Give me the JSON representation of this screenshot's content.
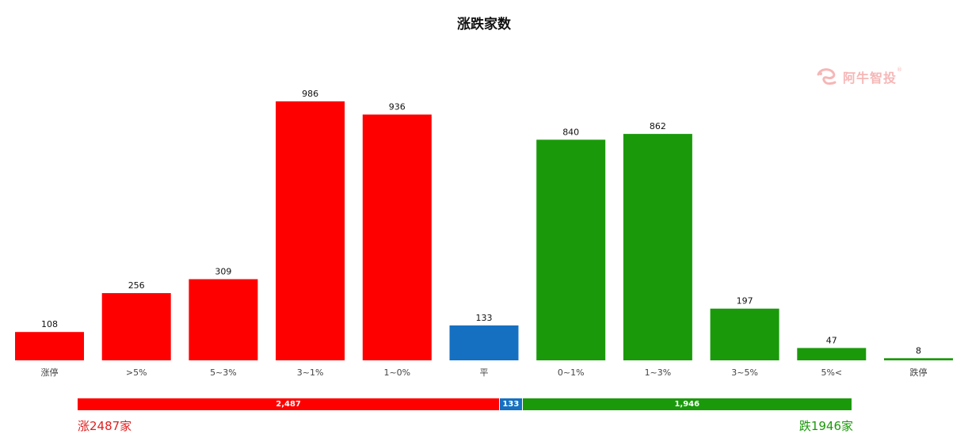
{
  "chart_data": {
    "type": "bar",
    "title": "涨跌家数",
    "categories": [
      "涨停",
      ">5%",
      "5~3%",
      "3~1%",
      "1~0%",
      "平",
      "0~1%",
      "1~3%",
      "3~5%",
      "5%<",
      "跌停"
    ],
    "values": [
      108,
      256,
      309,
      986,
      936,
      133,
      840,
      862,
      197,
      47,
      8
    ],
    "value_labels": [
      "108",
      "256",
      "309",
      "986",
      "936",
      "133",
      "840",
      "862",
      "197",
      "47",
      "8"
    ],
    "bar_colors": [
      "#ff0000",
      "#ff0000",
      "#ff0000",
      "#ff0000",
      "#ff0000",
      "#1570c2",
      "#1a9a0a",
      "#1a9a0a",
      "#1a9a0a",
      "#1a9a0a",
      "#1a9a0a"
    ],
    "ylim": [
      0,
      1000
    ],
    "grid": false,
    "xlabel": "",
    "ylabel": ""
  },
  "summary_bar": {
    "segments": [
      {
        "name": "up",
        "value": 2487,
        "label": "2,487",
        "color": "#ff0000"
      },
      {
        "name": "flat",
        "value": 133,
        "label": "133",
        "color": "#1570c2"
      },
      {
        "name": "down",
        "value": 1946,
        "label": "1,946",
        "color": "#1a9a0a"
      }
    ],
    "up_text": "涨2487家",
    "down_text": "跌1946家"
  },
  "watermark": {
    "text": "阿牛智投",
    "reg_mark": "®",
    "icon": "bull-logo-icon",
    "color": "#e83030"
  }
}
